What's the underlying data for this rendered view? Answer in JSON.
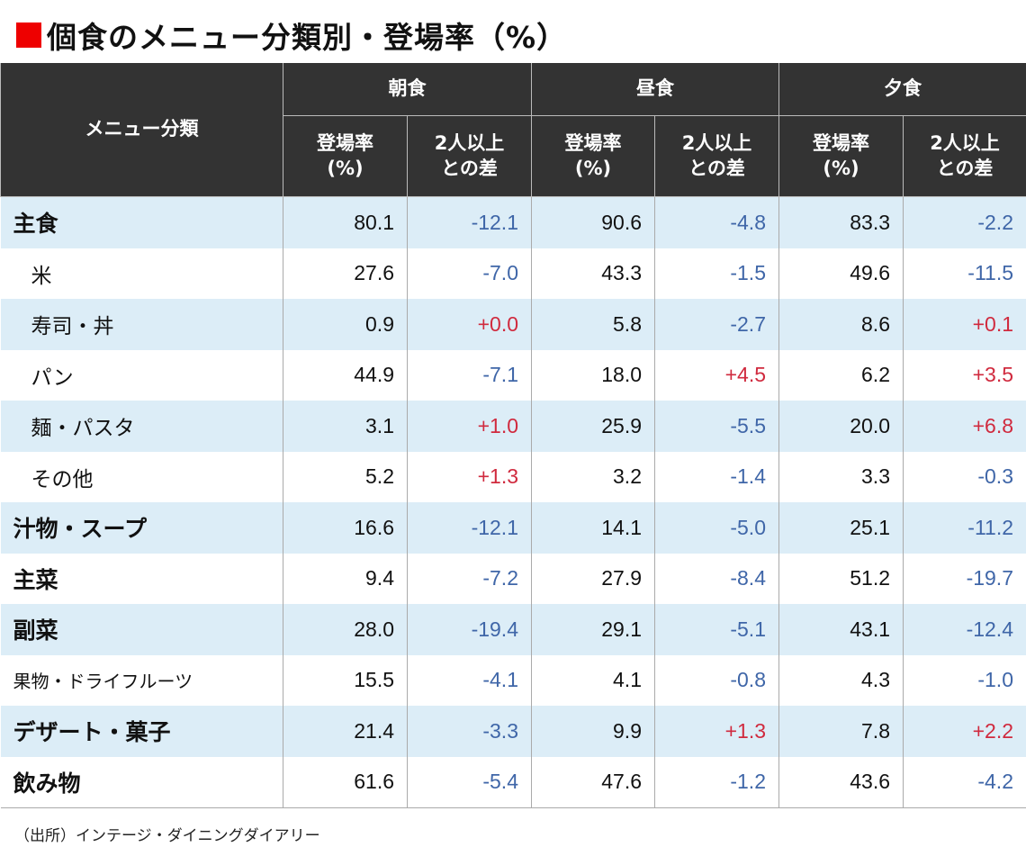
{
  "title": "個食のメニュー分類別・登場率（%）",
  "header": {
    "category": "メニュー分類",
    "meals": [
      "朝食",
      "昼食",
      "夕食"
    ],
    "rate_label_line1": "登場率",
    "rate_label_line2": "(%)",
    "diff_label_line1": "2人以上",
    "diff_label_line2": "との差"
  },
  "rows": [
    {
      "label": "主食",
      "level": "main",
      "values": [
        "80.1",
        "-12.1",
        "90.6",
        "-4.8",
        "83.3",
        "-2.2"
      ]
    },
    {
      "label": "米",
      "level": "sub",
      "values": [
        "27.6",
        "-7.0",
        "43.3",
        "-1.5",
        "49.6",
        "-11.5"
      ]
    },
    {
      "label": "寿司・丼",
      "level": "sub",
      "values": [
        "0.9",
        "+0.0",
        "5.8",
        "-2.7",
        "8.6",
        "+0.1"
      ]
    },
    {
      "label": "パン",
      "level": "sub",
      "values": [
        "44.9",
        "-7.1",
        "18.0",
        "+4.5",
        "6.2",
        "+3.5"
      ]
    },
    {
      "label": "麺・パスタ",
      "level": "sub",
      "values": [
        "3.1",
        "+1.0",
        "25.9",
        "-5.5",
        "20.0",
        "+6.8"
      ]
    },
    {
      "label": "その他",
      "level": "sub",
      "values": [
        "5.2",
        "+1.3",
        "3.2",
        "-1.4",
        "3.3",
        "-0.3"
      ]
    },
    {
      "label": "汁物・スープ",
      "level": "main",
      "values": [
        "16.6",
        "-12.1",
        "14.1",
        "-5.0",
        "25.1",
        "-11.2"
      ]
    },
    {
      "label": "主菜",
      "level": "main",
      "values": [
        "9.4",
        "-7.2",
        "27.9",
        "-8.4",
        "51.2",
        "-19.7"
      ]
    },
    {
      "label": "副菜",
      "level": "main",
      "values": [
        "28.0",
        "-19.4",
        "29.1",
        "-5.1",
        "43.1",
        "-12.4"
      ]
    },
    {
      "label": "果物・ドライフルーツ",
      "level": "small",
      "values": [
        "15.5",
        "-4.1",
        "4.1",
        "-0.8",
        "4.3",
        "-1.0"
      ]
    },
    {
      "label": "デザート・菓子",
      "level": "main",
      "values": [
        "21.4",
        "-3.3",
        "9.9",
        "+1.3",
        "7.8",
        "+2.2"
      ]
    },
    {
      "label": "飲み物",
      "level": "main",
      "values": [
        "61.6",
        "-5.4",
        "47.6",
        "-1.2",
        "43.6",
        "-4.2"
      ]
    }
  ],
  "source": "（出所）インテージ・ダイニングダイアリー",
  "colors": {
    "header_bg": "#333333",
    "shade": "#dcedf7",
    "negative": "#3f66a8",
    "positive": "#d02a3e",
    "title_mark": "#ee0000"
  }
}
